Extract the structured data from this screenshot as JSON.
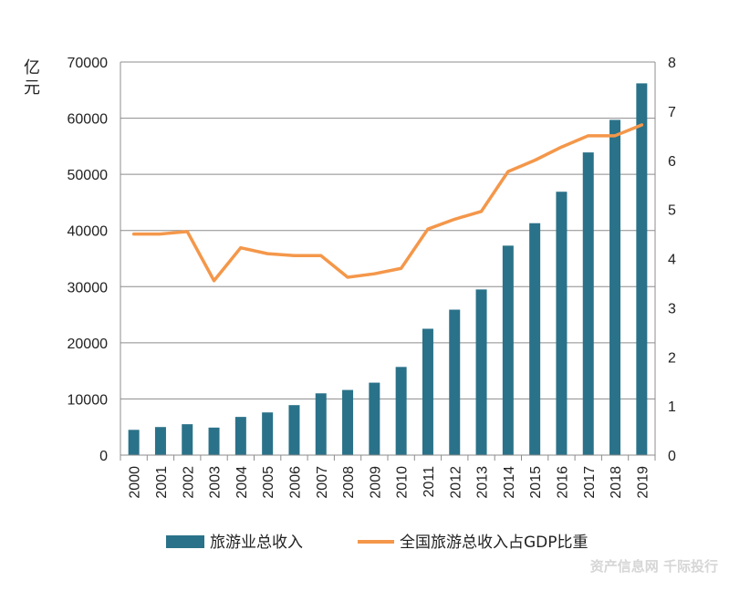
{
  "chart_data": {
    "type": "bar",
    "categories": [
      "2000",
      "2001",
      "2002",
      "2003",
      "2004",
      "2005",
      "2006",
      "2007",
      "2008",
      "2009",
      "2010",
      "2011",
      "2012",
      "2013",
      "2014",
      "2015",
      "2016",
      "2017",
      "2018",
      "2019"
    ],
    "y_unit": "亿元",
    "ylim": [
      0,
      70000
    ],
    "y2lim": [
      0,
      8
    ],
    "y_ticks": [
      "0",
      "10000",
      "20000",
      "30000",
      "40000",
      "50000",
      "60000",
      "70000"
    ],
    "y2_ticks": [
      "0",
      "1",
      "2",
      "3",
      "4",
      "5",
      "6",
      "7",
      "8"
    ],
    "grid": "horizontal",
    "legend_position": "bottom",
    "series": [
      {
        "name": "旅游业总收入",
        "type": "bar",
        "axis": "left",
        "color": "#2a7289",
        "values": [
          4500,
          5000,
          5500,
          4900,
          6800,
          7600,
          8900,
          11000,
          11600,
          12900,
          15700,
          22500,
          25900,
          29500,
          37300,
          41300,
          46900,
          53900,
          59700,
          66200
        ]
      },
      {
        "name": "全国旅游总收入占GDP比重",
        "type": "line",
        "axis": "right",
        "color": "#f4974a",
        "values": [
          4.5,
          4.5,
          4.55,
          3.55,
          4.22,
          4.1,
          4.06,
          4.06,
          3.62,
          3.69,
          3.8,
          4.6,
          4.8,
          4.96,
          5.77,
          6.0,
          6.27,
          6.5,
          6.5,
          6.72
        ]
      }
    ]
  },
  "watermark": "资产信息网 千际投行"
}
